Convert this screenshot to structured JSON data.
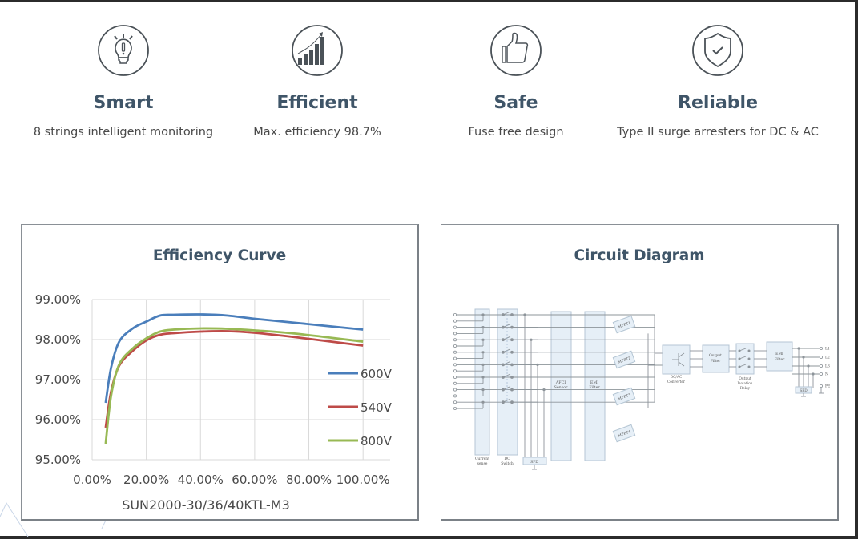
{
  "features": [
    {
      "icon": "lightbulb-icon",
      "title": "Smart",
      "desc": "8 strings intelligent monitoring"
    },
    {
      "icon": "bar-chart-growth-icon",
      "title": "Efficient",
      "desc": "Max. efficiency 98.7%"
    },
    {
      "icon": "thumbs-up-icon",
      "title": "Safe",
      "desc": "Fuse free design"
    },
    {
      "icon": "shield-check-icon",
      "title": "Reliable",
      "desc": "Type II surge arresters for DC & AC"
    }
  ],
  "colors": {
    "heading": "#3f5568",
    "s600": "#4a7ebb",
    "s540": "#be4b48",
    "s800": "#98b954"
  },
  "chart_data": {
    "type": "line",
    "title": "Efficiency Curve",
    "xlabel": "SUN2000-30/36/40KTL-M3",
    "ylabel": "",
    "xlim": [
      0,
      110
    ],
    "ylim": [
      95,
      99
    ],
    "xticks": [
      "0.00%",
      "20.00%",
      "40.00%",
      "60.00%",
      "80.00%",
      "100.00%"
    ],
    "yticks": [
      "99.00%",
      "98.00%",
      "97.00%",
      "96.00%",
      "95.00%"
    ],
    "grid": true,
    "legend": "right",
    "x": [
      5,
      7,
      10,
      15,
      20,
      25,
      30,
      40,
      50,
      60,
      75,
      100
    ],
    "series": [
      {
        "name": "600V",
        "color": "#4a7ebb",
        "values": [
          96.42,
          97.3,
          97.95,
          98.28,
          98.45,
          98.6,
          98.62,
          98.63,
          98.6,
          98.52,
          98.42,
          98.25
        ]
      },
      {
        "name": "540V",
        "color": "#be4b48",
        "values": [
          95.8,
          96.7,
          97.35,
          97.72,
          97.98,
          98.12,
          98.16,
          98.2,
          98.21,
          98.17,
          98.06,
          97.85
        ]
      },
      {
        "name": "800V",
        "color": "#98b954",
        "values": [
          95.4,
          96.6,
          97.38,
          97.78,
          98.03,
          98.2,
          98.25,
          98.28,
          98.27,
          98.23,
          98.15,
          97.95
        ]
      }
    ]
  },
  "circuit": {
    "title": "Circuit Diagram",
    "labels": {
      "current_sense": [
        "Current",
        "sense"
      ],
      "dc_switch": [
        "DC",
        "Switch"
      ],
      "spd": "SPD",
      "afci": [
        "AFCI",
        "Sensor"
      ],
      "emi": [
        "EMI",
        "Filter"
      ],
      "mppt": [
        "MPPT1",
        "MPPT2",
        "MPPT3",
        "MPPT4"
      ],
      "dcac": [
        "DC/AC",
        "Converter"
      ],
      "output_filter": [
        "Output",
        "Filter"
      ],
      "relay": [
        "Output",
        "Isolation",
        "Relay"
      ],
      "emi2": [
        "EMI",
        "Filter"
      ],
      "spd2": "SPD",
      "outputs": [
        "L1",
        "L2",
        "L3",
        "N",
        "PE"
      ]
    }
  }
}
